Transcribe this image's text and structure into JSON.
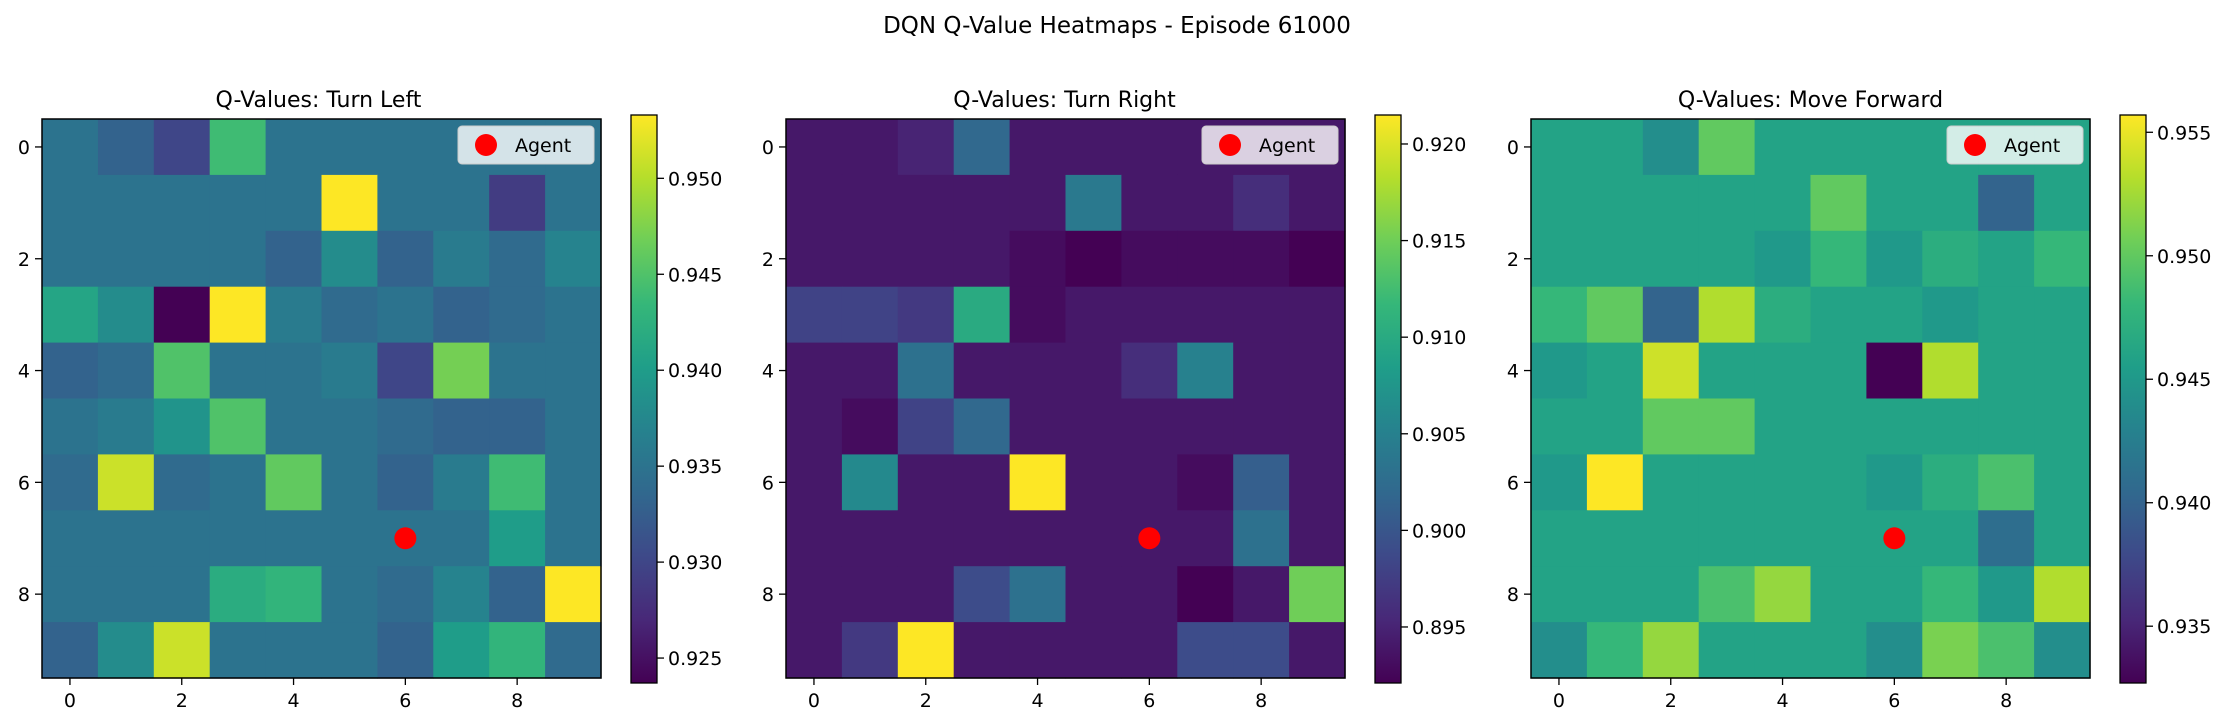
{
  "figure": {
    "title": "DQN Q-Value Heatmaps - Episode 61000"
  },
  "colormap": {
    "name": "viridis",
    "stops": [
      "#440154",
      "#482878",
      "#3e4989",
      "#31688e",
      "#26828e",
      "#1f9e89",
      "#35b779",
      "#6ece58",
      "#b5de2b",
      "#fde725"
    ]
  },
  "agent_color": "#ff0000",
  "chart_data": [
    {
      "type": "heatmap",
      "title": "Q-Values: Turn Left",
      "x_ticks": [
        "0",
        "2",
        "4",
        "6",
        "8"
      ],
      "y_ticks": [
        "0",
        "2",
        "4",
        "6",
        "8"
      ],
      "colorbar_ticks": [
        "0.925",
        "0.930",
        "0.935",
        "0.940",
        "0.945",
        "0.950"
      ],
      "legend": [
        "Agent"
      ],
      "legend_position": "top-right",
      "vmin": 0.9237,
      "vmax": 0.9533,
      "agent": {
        "row": 7,
        "col": 6
      },
      "values": [
        [
          0.935,
          0.933,
          0.93,
          0.944,
          0.935,
          0.935,
          0.935,
          0.935,
          0.935,
          0.935
        ],
        [
          0.935,
          0.935,
          0.935,
          0.935,
          0.935,
          0.9533,
          0.935,
          0.935,
          0.929,
          0.935
        ],
        [
          0.935,
          0.935,
          0.935,
          0.935,
          0.933,
          0.938,
          0.933,
          0.936,
          0.934,
          0.937
        ],
        [
          0.941,
          0.938,
          0.9237,
          0.9533,
          0.936,
          0.934,
          0.935,
          0.933,
          0.934,
          0.935
        ],
        [
          0.933,
          0.934,
          0.945,
          0.935,
          0.935,
          0.936,
          0.93,
          0.947,
          0.935,
          0.935
        ],
        [
          0.935,
          0.936,
          0.939,
          0.945,
          0.935,
          0.935,
          0.934,
          0.933,
          0.933,
          0.935
        ],
        [
          0.934,
          0.951,
          0.934,
          0.935,
          0.946,
          0.935,
          0.933,
          0.936,
          0.944,
          0.935
        ],
        [
          0.935,
          0.935,
          0.935,
          0.935,
          0.935,
          0.935,
          0.935,
          0.935,
          0.94,
          0.935
        ],
        [
          0.935,
          0.935,
          0.935,
          0.942,
          0.943,
          0.935,
          0.934,
          0.937,
          0.933,
          0.9533
        ],
        [
          0.933,
          0.938,
          0.951,
          0.935,
          0.935,
          0.935,
          0.933,
          0.94,
          0.943,
          0.934
        ]
      ]
    },
    {
      "type": "heatmap",
      "title": "Q-Values: Turn Right",
      "x_ticks": [
        "0",
        "2",
        "4",
        "6",
        "8"
      ],
      "y_ticks": [
        "0",
        "2",
        "4",
        "6",
        "8"
      ],
      "colorbar_ticks": [
        "0.895",
        "0.900",
        "0.905",
        "0.910",
        "0.915",
        "0.920"
      ],
      "legend": [
        "Agent"
      ],
      "legend_position": "top-right",
      "vmin": 0.8921,
      "vmax": 0.9215,
      "agent": {
        "row": 7,
        "col": 6
      },
      "values": [
        [
          0.894,
          0.894,
          0.895,
          0.902,
          0.894,
          0.894,
          0.894,
          0.894,
          0.894,
          0.894
        ],
        [
          0.894,
          0.894,
          0.894,
          0.894,
          0.894,
          0.904,
          0.894,
          0.894,
          0.896,
          0.894
        ],
        [
          0.894,
          0.894,
          0.894,
          0.894,
          0.893,
          0.8921,
          0.893,
          0.893,
          0.893,
          0.8921
        ],
        [
          0.898,
          0.898,
          0.897,
          0.91,
          0.893,
          0.894,
          0.894,
          0.894,
          0.894,
          0.894
        ],
        [
          0.894,
          0.894,
          0.903,
          0.894,
          0.894,
          0.894,
          0.896,
          0.905,
          0.894,
          0.894
        ],
        [
          0.894,
          0.893,
          0.898,
          0.902,
          0.894,
          0.894,
          0.894,
          0.894,
          0.894,
          0.894
        ],
        [
          0.894,
          0.906,
          0.894,
          0.894,
          0.9215,
          0.894,
          0.894,
          0.893,
          0.901,
          0.894
        ],
        [
          0.894,
          0.894,
          0.894,
          0.894,
          0.894,
          0.894,
          0.894,
          0.894,
          0.903,
          0.894
        ],
        [
          0.894,
          0.894,
          0.894,
          0.899,
          0.903,
          0.894,
          0.894,
          0.8921,
          0.894,
          0.915
        ],
        [
          0.894,
          0.897,
          0.9215,
          0.894,
          0.894,
          0.894,
          0.894,
          0.899,
          0.899,
          0.894
        ]
      ]
    },
    {
      "type": "heatmap",
      "title": "Q-Values: Move Forward",
      "x_ticks": [
        "0",
        "2",
        "4",
        "6",
        "8"
      ],
      "y_ticks": [
        "0",
        "2",
        "4",
        "6",
        "8"
      ],
      "colorbar_ticks": [
        "0.935",
        "0.940",
        "0.945",
        "0.950",
        "0.955"
      ],
      "legend": [
        "Agent"
      ],
      "legend_position": "top-right",
      "vmin": 0.9327,
      "vmax": 0.9557,
      "agent": {
        "row": 7,
        "col": 6
      },
      "values": [
        [
          0.946,
          0.946,
          0.944,
          0.95,
          0.946,
          0.946,
          0.946,
          0.946,
          0.946,
          0.946
        ],
        [
          0.946,
          0.946,
          0.946,
          0.946,
          0.946,
          0.95,
          0.946,
          0.946,
          0.94,
          0.946
        ],
        [
          0.946,
          0.946,
          0.946,
          0.946,
          0.945,
          0.948,
          0.945,
          0.947,
          0.946,
          0.948
        ],
        [
          0.948,
          0.95,
          0.94,
          0.953,
          0.947,
          0.946,
          0.946,
          0.945,
          0.946,
          0.946
        ],
        [
          0.945,
          0.946,
          0.954,
          0.946,
          0.946,
          0.946,
          0.9327,
          0.953,
          0.946,
          0.946
        ],
        [
          0.946,
          0.946,
          0.95,
          0.95,
          0.946,
          0.946,
          0.946,
          0.946,
          0.946,
          0.946
        ],
        [
          0.945,
          0.9557,
          0.946,
          0.946,
          0.946,
          0.946,
          0.945,
          0.947,
          0.949,
          0.946
        ],
        [
          0.946,
          0.946,
          0.946,
          0.946,
          0.946,
          0.946,
          0.946,
          0.946,
          0.941,
          0.946
        ],
        [
          0.946,
          0.946,
          0.946,
          0.949,
          0.952,
          0.946,
          0.946,
          0.948,
          0.945,
          0.953
        ],
        [
          0.944,
          0.948,
          0.952,
          0.946,
          0.946,
          0.946,
          0.944,
          0.951,
          0.949,
          0.944
        ]
      ]
    }
  ]
}
